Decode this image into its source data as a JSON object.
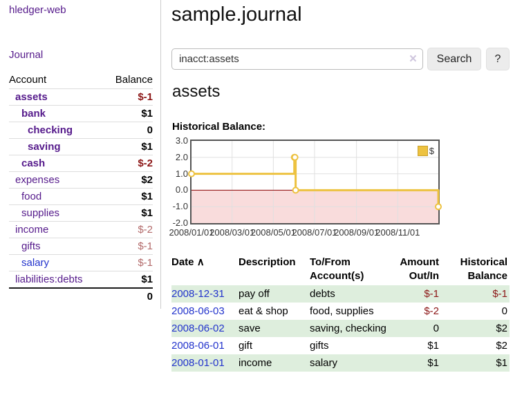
{
  "app": {
    "brand": "hledger-web"
  },
  "nav": {
    "journal": "Journal"
  },
  "sidebar": {
    "header": {
      "account": "Account",
      "balance": "Balance"
    },
    "accounts": [
      {
        "name": "assets",
        "balance": "$-1",
        "indent": 1,
        "bold": true,
        "neg": "strong"
      },
      {
        "name": "bank",
        "balance": "$1",
        "indent": 2,
        "bold": true
      },
      {
        "name": "checking",
        "balance": "0",
        "indent": 3,
        "bold": true
      },
      {
        "name": "saving",
        "balance": "$1",
        "indent": 3,
        "bold": true
      },
      {
        "name": "cash",
        "balance": "$-2",
        "indent": 2,
        "bold": true,
        "neg": "strong"
      },
      {
        "name": "expenses",
        "balance": "$2",
        "indent": 1
      },
      {
        "name": "food",
        "balance": "$1",
        "indent": 2
      },
      {
        "name": "supplies",
        "balance": "$1",
        "indent": 2
      },
      {
        "name": "income",
        "balance": "$-2",
        "indent": 1,
        "neg": "soft"
      },
      {
        "name": "gifts",
        "balance": "$-1",
        "indent": 2,
        "neg": "soft"
      },
      {
        "name": "salary",
        "balance": "$-1",
        "indent": 2,
        "neg": "soft",
        "link": "blue"
      },
      {
        "name": "liabilities:debts",
        "balance": "$1",
        "indent": 1
      }
    ],
    "total": "0"
  },
  "header": {
    "title": "sample.journal"
  },
  "search": {
    "value": "inacct:assets",
    "clear_icon": "×",
    "button_label": "Search",
    "help_label": "?"
  },
  "account_page": {
    "heading": "assets",
    "chart_label": "Historical Balance:"
  },
  "chart_data": {
    "type": "line",
    "step": true,
    "title": "Historical Balance",
    "series": [
      {
        "name": "$",
        "color": "#edc240",
        "points": [
          [
            "2008-01-01",
            1
          ],
          [
            "2008-06-01",
            2
          ],
          [
            "2008-06-02",
            2
          ],
          [
            "2008-06-03",
            0
          ],
          [
            "2008-12-31",
            -1
          ]
        ]
      }
    ],
    "x_start": "2008-01-01",
    "x_end": "2008-12-31",
    "ylim": [
      -2,
      3
    ],
    "yticks": [
      "3.0",
      "2.0",
      "1.0",
      "0.0",
      "-1.0",
      "-2.0"
    ],
    "xticks": [
      "2008/01/01",
      "2008/03/01",
      "2008/05/01",
      "2008/07/01",
      "2008/09/01",
      "2008/11/01"
    ],
    "legend": {
      "label": "$",
      "position": "top-right"
    },
    "grid": true,
    "negative_fill": "#f9dcdc",
    "zero_line_color": "#8b0000",
    "grid_color": "#e0e0e0"
  },
  "register": {
    "sort_indicator": "∧",
    "headers": {
      "date": "Date",
      "description": "Description",
      "tofrom": "To/From Account(s)",
      "amount": "Amount Out/In",
      "balance": "Historical Balance"
    },
    "rows": [
      {
        "date": "2008-12-31",
        "description": "pay off",
        "accounts": "debts",
        "amount": "$-1",
        "amount_negative": true,
        "balance": "$-1",
        "balance_negative": true
      },
      {
        "date": "2008-06-03",
        "description": "eat & shop",
        "accounts": "food, supplies",
        "amount": "$-2",
        "amount_negative": true,
        "balance": "0",
        "balance_negative": false
      },
      {
        "date": "2008-06-02",
        "description": "save",
        "accounts": "saving, checking",
        "amount": "0",
        "amount_negative": false,
        "balance": "$2",
        "balance_negative": false
      },
      {
        "date": "2008-06-01",
        "description": "gift",
        "accounts": "gifts",
        "amount": "$1",
        "amount_negative": false,
        "balance": "$2",
        "balance_negative": false
      },
      {
        "date": "2008-01-01",
        "description": "income",
        "accounts": "salary",
        "amount": "$1",
        "amount_negative": false,
        "balance": "$1",
        "balance_negative": false
      }
    ]
  }
}
